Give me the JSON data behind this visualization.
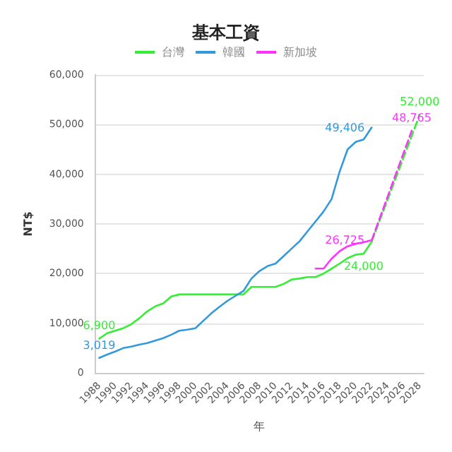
{
  "chart_data": {
    "type": "line",
    "title": "基本工資",
    "xlabel": "年",
    "ylabel": "NT$",
    "x": [
      1988,
      1989,
      1990,
      1991,
      1992,
      1993,
      1994,
      1995,
      1996,
      1997,
      1998,
      1999,
      2000,
      2001,
      2002,
      2003,
      2004,
      2005,
      2006,
      2007,
      2008,
      2009,
      2010,
      2011,
      2012,
      2013,
      2014,
      2015,
      2016,
      2017,
      2018,
      2019,
      2020,
      2021,
      2022
    ],
    "series": [
      {
        "name": "台灣",
        "color": "#33ee33",
        "values": [
          6900,
          8000,
          8500,
          9000,
          9800,
          11000,
          12400,
          13400,
          14000,
          15400,
          15800,
          15800,
          15800,
          15800,
          15800,
          15800,
          15800,
          15800,
          15800,
          17300,
          17300,
          17300,
          17300,
          17900,
          18800,
          19000,
          19300,
          19300,
          20000,
          21000,
          22000,
          23100,
          23800,
          24000,
          26400
        ],
        "value_labels": [
          "6,900",
          null,
          null,
          null,
          null,
          null,
          null,
          null,
          null,
          null,
          null,
          null,
          null,
          null,
          null,
          null,
          null,
          null,
          null,
          null,
          null,
          null,
          null,
          null,
          null,
          null,
          null,
          null,
          null,
          null,
          null,
          null,
          null,
          "24,000",
          null
        ]
      },
      {
        "name": "韓國",
        "color": "#3399dd",
        "values": [
          3019,
          3700,
          4300,
          5000,
          5300,
          5700,
          6000,
          6500,
          7000,
          7700,
          8500,
          8700,
          9000,
          10500,
          12000,
          13300,
          14500,
          15500,
          16500,
          19000,
          20500,
          21500,
          22000,
          23500,
          25000,
          26500,
          28500,
          30500,
          32500,
          35000,
          40500,
          45000,
          46500,
          47000,
          49406
        ],
        "value_labels": [
          "3,019",
          null,
          null,
          null,
          null,
          null,
          null,
          null,
          null,
          null,
          null,
          null,
          null,
          null,
          null,
          null,
          null,
          null,
          null,
          null,
          null,
          null,
          null,
          null,
          null,
          null,
          null,
          null,
          null,
          null,
          null,
          null,
          null,
          null,
          "49,406"
        ]
      },
      {
        "name": "新加坡",
        "color": "#ff33ff",
        "values": [
          null,
          null,
          null,
          null,
          null,
          null,
          null,
          null,
          null,
          null,
          null,
          null,
          null,
          null,
          null,
          null,
          null,
          null,
          null,
          null,
          null,
          null,
          null,
          null,
          null,
          null,
          null,
          21000,
          21000,
          23000,
          24500,
          25500,
          26000,
          26300,
          26725
        ],
        "value_labels": [
          null,
          null,
          null,
          null,
          null,
          null,
          null,
          null,
          null,
          null,
          null,
          null,
          null,
          null,
          null,
          null,
          null,
          null,
          null,
          null,
          null,
          null,
          null,
          null,
          null,
          null,
          null,
          null,
          null,
          null,
          null,
          null,
          null,
          null,
          "26,725"
        ]
      },
      {
        "color": "#33ee33",
        "line_style": "dashed",
        "x": [
          2022,
          2028
        ],
        "values": [
          26400,
          52000
        ],
        "value_labels": [
          null,
          "52,000"
        ]
      },
      {
        "color": "#ff33ff",
        "line_style": "dashed",
        "x": [
          2022,
          2027
        ],
        "values": [
          26700,
          48765
        ],
        "value_labels": [
          null,
          "48,765"
        ]
      }
    ],
    "xlim": [
      1987.5,
      2028.5
    ],
    "xticks": [
      1988,
      1990,
      1992,
      1994,
      1996,
      1998,
      2000,
      2002,
      2004,
      2006,
      2008,
      2010,
      2012,
      2014,
      2016,
      2018,
      2020,
      2022,
      2024,
      2026,
      2028
    ],
    "ylim": [
      0,
      60000
    ],
    "yticks": [
      {
        "value": 0,
        "label": "0"
      },
      {
        "value": 10000,
        "label": "10,000"
      },
      {
        "value": 20000,
        "label": "20,000"
      },
      {
        "value": 30000,
        "label": "30,000"
      },
      {
        "value": 40000,
        "label": "40,000"
      },
      {
        "value": 50000,
        "label": "50,000"
      },
      {
        "value": 60000,
        "label": "60,000"
      }
    ],
    "grid": "y",
    "legend": "top",
    "marker": "none",
    "line_style": "solid"
  }
}
